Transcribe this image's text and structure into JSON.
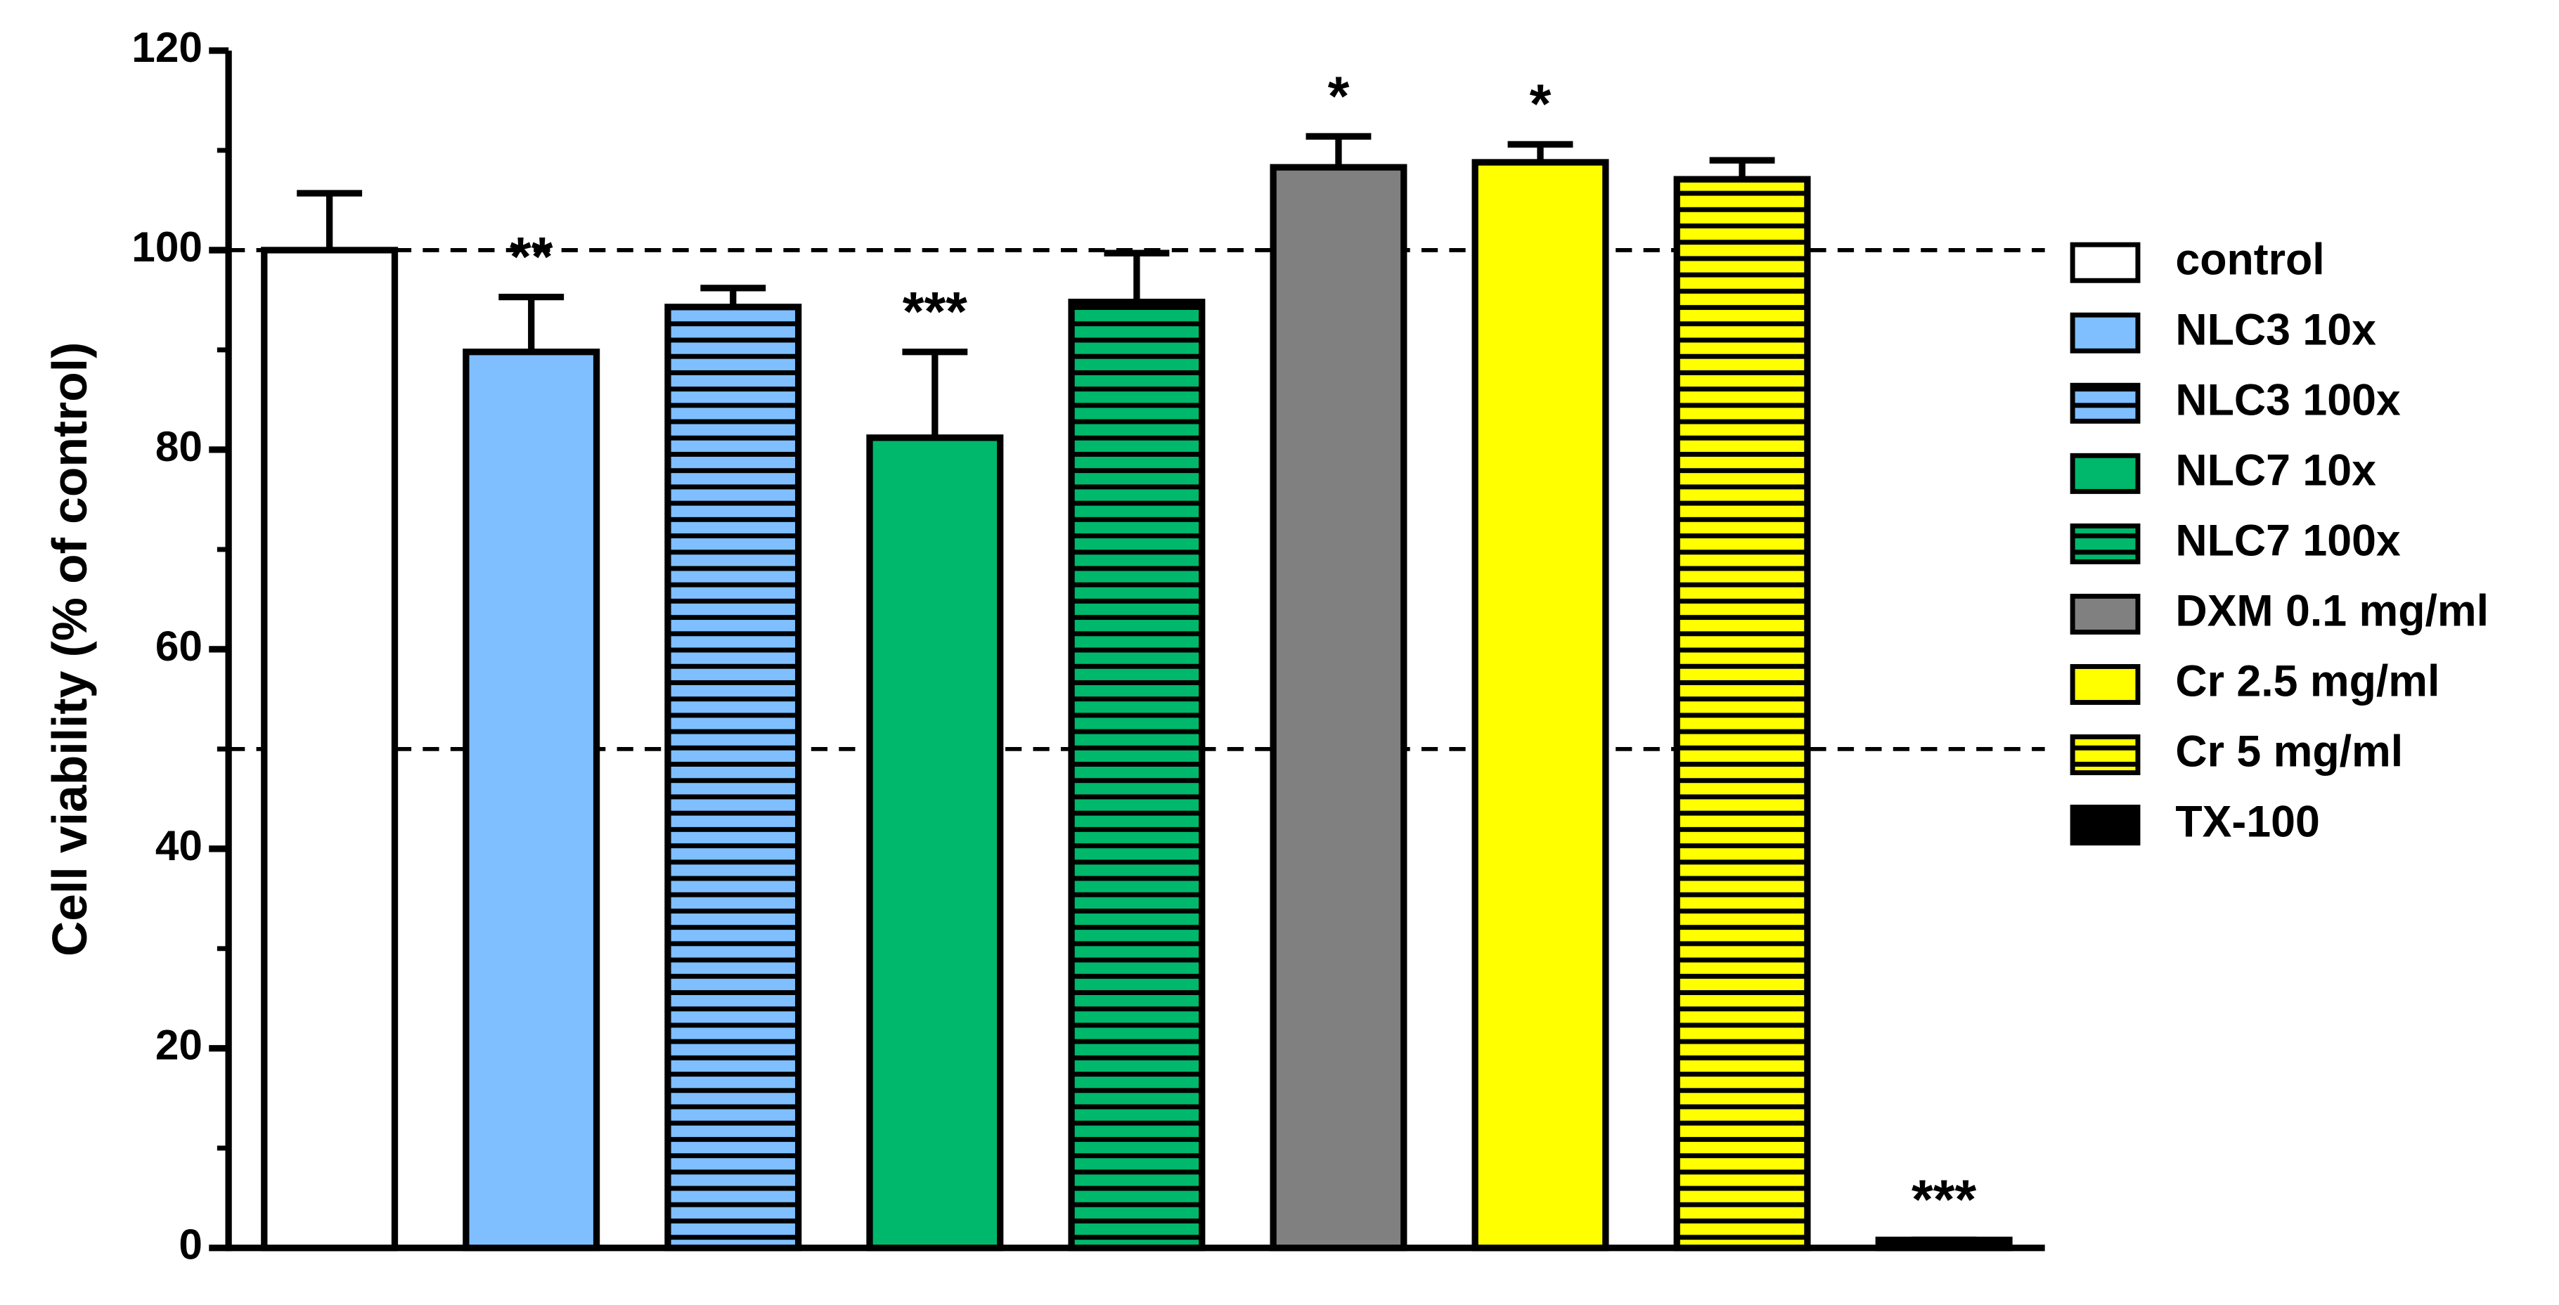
{
  "chart_data": {
    "type": "bar",
    "y_label": "Cell viability (% of control)",
    "ylim": [
      0,
      120
    ],
    "yticks": [
      0,
      20,
      40,
      60,
      80,
      100,
      120
    ],
    "minor_yticks": [
      10,
      30,
      50,
      70,
      90,
      110
    ],
    "reference_lines": [
      100,
      50
    ],
    "series": [
      {
        "name": "control",
        "color": "#ffffff",
        "pattern": "solid",
        "values": [
          100
        ],
        "errors": [
          5.7
        ]
      },
      {
        "name": "NLC3 10x",
        "color": "#7fbfff",
        "pattern": "solid",
        "values": [
          89.8
        ],
        "errors": [
          5.5
        ],
        "significance": "**"
      },
      {
        "name": "NLC3 100x",
        "color": "#7fbfff",
        "pattern": "striped",
        "values": [
          94.3
        ],
        "errors": [
          1.9
        ]
      },
      {
        "name": "NLC7 10x",
        "color": "#00b86b",
        "pattern": "solid",
        "values": [
          81.2
        ],
        "errors": [
          8.6
        ],
        "significance": "***"
      },
      {
        "name": "NLC7 100x",
        "color": "#00b86b",
        "pattern": "striped",
        "values": [
          94.8
        ],
        "errors": [
          4.9
        ]
      },
      {
        "name": "DXM 0.1 mg/ml",
        "color": "#808080",
        "pattern": "solid",
        "values": [
          108.3
        ],
        "errors": [
          3.1
        ],
        "significance": "*"
      },
      {
        "name": "Cr 2.5 mg/ml",
        "color": "#ffff00",
        "pattern": "solid",
        "values": [
          108.8
        ],
        "errors": [
          1.8
        ],
        "significance": "*"
      },
      {
        "name": "Cr 5 mg/ml",
        "color": "#ffff00",
        "pattern": "striped",
        "values": [
          107.1
        ],
        "errors": [
          1.9
        ]
      },
      {
        "name": "TX-100",
        "color": "#000000",
        "pattern": "solid",
        "values": [
          0.8
        ],
        "errors": [
          0
        ],
        "significance": "***"
      }
    ]
  }
}
